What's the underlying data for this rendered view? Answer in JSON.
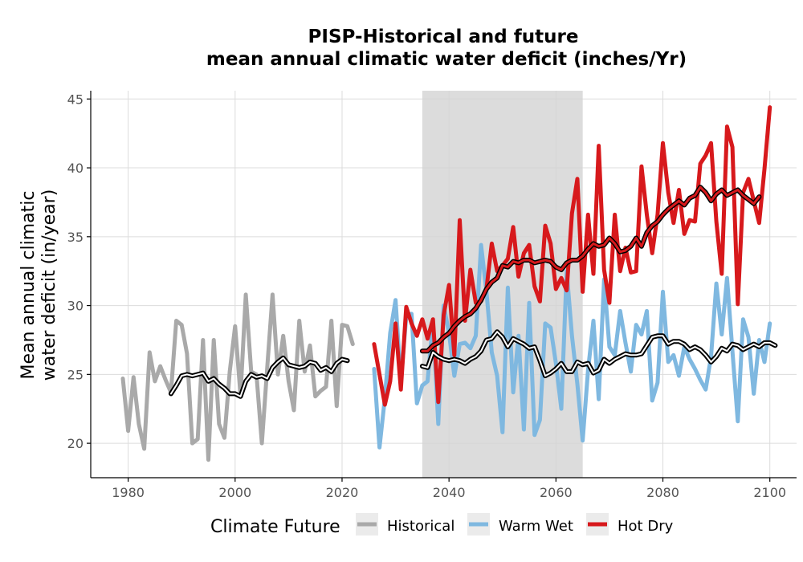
{
  "chart_data": {
    "type": "line",
    "title": "PISP-Historical and future",
    "subtitle": "mean annual climatic water deficit (inches/Yr)",
    "ylabel_line1": "Mean annual climatic",
    "ylabel_line2": "water deficit (in/year)",
    "xlabel": "",
    "xlim": [
      1973,
      2105
    ],
    "ylim": [
      17.5,
      45.6
    ],
    "x_ticks": [
      1980,
      2000,
      2020,
      2040,
      2060,
      2080,
      2100
    ],
    "y_ticks": [
      20,
      25,
      30,
      35,
      40,
      45
    ],
    "grid": true,
    "shaded_period": [
      2035,
      2065
    ],
    "legend": {
      "title": "Climate Future",
      "position": "bottom",
      "entries": [
        {
          "label": "Historical",
          "color": "#a9a9a9"
        },
        {
          "label": "Warm Wet",
          "color": "#7fb8e0"
        },
        {
          "label": "Hot Dry",
          "color": "#d7191c"
        }
      ]
    },
    "series": [
      {
        "name": "Historical",
        "color": "#a9a9a9",
        "x_start": 1979,
        "values": [
          24.7,
          20.9,
          24.8,
          21.4,
          19.6,
          26.6,
          24.5,
          25.6,
          24.6,
          23.7,
          28.9,
          28.6,
          26.5,
          20.0,
          20.3,
          27.5,
          18.8,
          27.5,
          21.4,
          20.4,
          25.2,
          28.5,
          23.5,
          30.8,
          25.2,
          25.0,
          20.0,
          25.5,
          30.8,
          25.0,
          27.8,
          24.5,
          22.4,
          28.9,
          25.2,
          27.1,
          23.4,
          23.8,
          24.1,
          28.9,
          22.7,
          28.6,
          28.5,
          27.2
        ]
      },
      {
        "name": "Historical (smoothed)",
        "color": "#000000",
        "x_start": 1988,
        "values": [
          23.6,
          24.2,
          24.9,
          25.0,
          24.9,
          25.0,
          25.1,
          24.5,
          24.7,
          24.3,
          24.0,
          23.6,
          23.6,
          23.4,
          24.5,
          25.0,
          24.8,
          24.9,
          24.7,
          25.5,
          25.9,
          26.2,
          25.7,
          25.6,
          25.5,
          25.6,
          25.9,
          25.8,
          25.3,
          25.5,
          25.2,
          25.8,
          26.1,
          26.0
        ]
      },
      {
        "name": "Warm Wet",
        "color": "#7fb8e0",
        "x_start": 2026,
        "values": [
          25.4,
          19.7,
          23.3,
          28.0,
          30.4,
          24.4,
          29.2,
          29.4,
          22.9,
          24.2,
          24.5,
          28.9,
          21.4,
          30.0,
          28.0,
          24.9,
          27.2,
          27.3,
          26.9,
          27.8,
          34.4,
          31.0,
          26.6,
          24.9,
          20.8,
          31.3,
          23.7,
          27.8,
          21.0,
          30.2,
          20.6,
          21.7,
          28.7,
          28.4,
          25.8,
          22.5,
          32.5,
          27.8,
          24.3,
          20.2,
          25.3,
          28.9,
          23.2,
          31.9,
          27.0,
          26.4,
          29.6,
          27.3,
          25.2,
          28.6,
          27.9,
          29.6,
          23.1,
          24.4,
          31.0,
          25.9,
          26.4,
          24.9,
          27.0,
          26.1,
          25.4,
          24.6,
          23.9,
          26.3,
          31.6,
          27.9,
          32.0,
          26.7,
          21.6,
          29.0,
          27.7,
          23.6,
          27.5,
          25.9,
          28.7
        ]
      },
      {
        "name": "Hot Dry",
        "color": "#d7191c",
        "x_start": 2026,
        "values": [
          27.2,
          25.0,
          22.8,
          24.5,
          28.7,
          23.9,
          29.9,
          28.7,
          27.8,
          29.0,
          27.6,
          29.0,
          23.0,
          29.3,
          31.5,
          26.4,
          36.2,
          28.9,
          32.6,
          30.2,
          30.3,
          31.2,
          34.5,
          32.5,
          32.9,
          33.4,
          35.7,
          32.1,
          33.8,
          34.4,
          31.4,
          30.3,
          35.8,
          34.5,
          31.2,
          32.0,
          31.1,
          36.7,
          39.2,
          31.0,
          36.6,
          32.3,
          41.6,
          32.6,
          30.2,
          36.6,
          32.5,
          34.2,
          32.4,
          32.5,
          40.1,
          36.6,
          33.8,
          36.6,
          41.8,
          38.2,
          36.0,
          38.4,
          35.2,
          36.2,
          36.1,
          40.3,
          40.9,
          41.8,
          36.1,
          32.3,
          43.0,
          41.5,
          30.1,
          38.2,
          39.2,
          37.6,
          36.0,
          39.9,
          44.4
        ]
      },
      {
        "name": "Warm Wet (smoothed)",
        "color": "#000000",
        "x_start": 2035,
        "values": [
          25.6,
          25.5,
          26.6,
          26.3,
          26.1,
          26.0,
          26.1,
          26.0,
          25.8,
          26.1,
          26.3,
          26.7,
          27.5,
          27.6,
          28.1,
          27.7,
          27.0,
          27.6,
          27.4,
          27.2,
          26.9,
          27.0,
          26.0,
          24.9,
          25.1,
          25.4,
          25.8,
          25.2,
          25.2,
          25.9,
          25.7,
          25.8,
          25.1,
          25.3,
          26.1,
          25.8,
          26.1,
          26.3,
          26.5,
          26.4,
          26.4,
          26.5,
          27.1,
          27.7,
          27.8,
          27.8,
          27.2,
          27.4,
          27.4,
          27.2,
          26.8,
          27.0,
          26.8,
          26.4,
          25.9,
          26.3,
          26.9,
          26.7,
          27.2,
          27.1,
          26.8,
          27.0,
          27.2,
          27.0,
          27.3,
          27.3,
          27.1
        ]
      },
      {
        "name": "Hot Dry (smoothed)",
        "color": "#d7191c",
        "x_start": 2035,
        "values": [
          26.7,
          26.7,
          27.1,
          27.3,
          27.7,
          28.0,
          28.5,
          28.9,
          29.2,
          29.4,
          29.8,
          30.4,
          31.2,
          31.7,
          32.0,
          32.9,
          32.8,
          33.2,
          33.1,
          33.3,
          33.3,
          33.1,
          33.2,
          33.3,
          33.2,
          32.8,
          32.6,
          33.1,
          33.3,
          33.3,
          33.6,
          34.1,
          34.5,
          34.3,
          34.4,
          34.9,
          34.5,
          33.9,
          34.0,
          34.3,
          34.9,
          34.3,
          35.3,
          35.8,
          36.1,
          36.6,
          37.0,
          37.3,
          37.6,
          37.3,
          37.8,
          38.0,
          38.6,
          38.2,
          37.6,
          38.1,
          38.4,
          38.0,
          38.2,
          38.4,
          38.0,
          37.7,
          37.4,
          37.9
        ]
      }
    ]
  }
}
